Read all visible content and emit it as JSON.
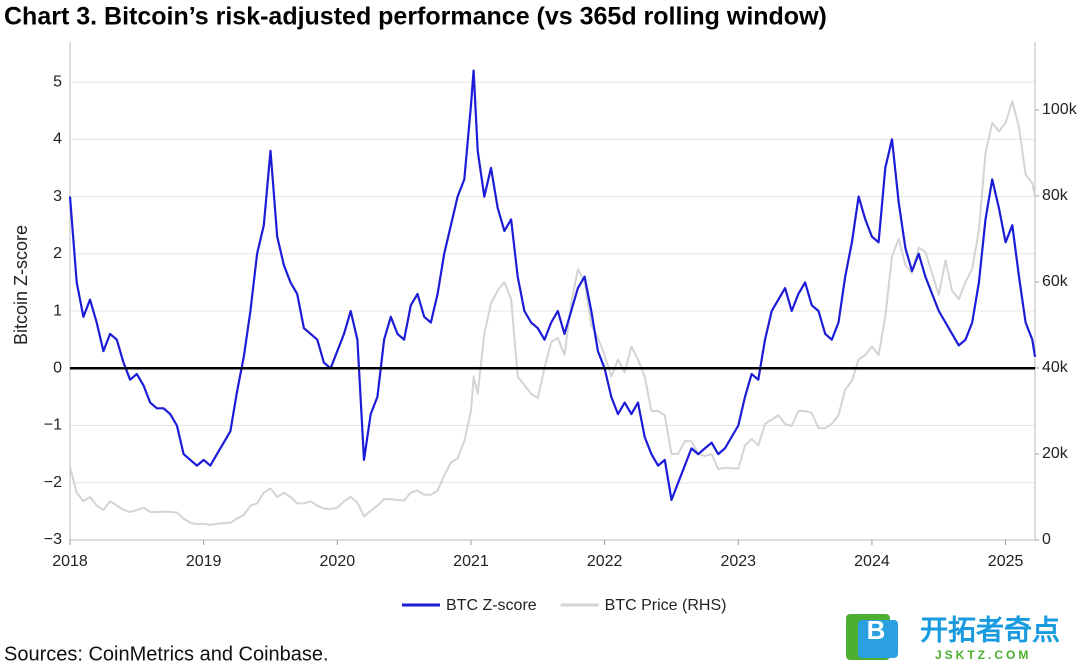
{
  "chart_data": {
    "type": "line",
    "title": "Chart 3. Bitcoin’s risk-adjusted performance (vs 365d rolling window)",
    "y_label": "Bitcoin Z-score",
    "source": "Sources: CoinMetrics and Coinbase.",
    "x": [
      2018,
      2018.05,
      2018.1,
      2018.15,
      2018.2,
      2018.25,
      2018.3,
      2018.35,
      2018.4,
      2018.45,
      2018.5,
      2018.55,
      2018.6,
      2018.65,
      2018.7,
      2018.75,
      2018.8,
      2018.85,
      2018.9,
      2018.95,
      2019,
      2019.05,
      2019.1,
      2019.15,
      2019.2,
      2019.25,
      2019.3,
      2019.35,
      2019.4,
      2019.45,
      2019.5,
      2019.55,
      2019.6,
      2019.65,
      2019.7,
      2019.75,
      2019.8,
      2019.85,
      2019.9,
      2019.95,
      2020,
      2020.05,
      2020.1,
      2020.15,
      2020.2,
      2020.25,
      2020.3,
      2020.35,
      2020.4,
      2020.45,
      2020.5,
      2020.55,
      2020.6,
      2020.65,
      2020.7,
      2020.75,
      2020.8,
      2020.85,
      2020.9,
      2020.95,
      2021,
      2021.02,
      2021.05,
      2021.1,
      2021.15,
      2021.2,
      2021.25,
      2021.3,
      2021.35,
      2021.4,
      2021.45,
      2021.5,
      2021.55,
      2021.6,
      2021.65,
      2021.7,
      2021.75,
      2021.8,
      2021.85,
      2021.9,
      2021.95,
      2022,
      2022.05,
      2022.1,
      2022.15,
      2022.2,
      2022.25,
      2022.3,
      2022.35,
      2022.4,
      2022.45,
      2022.5,
      2022.55,
      2022.6,
      2022.65,
      2022.7,
      2022.75,
      2022.8,
      2022.85,
      2022.9,
      2022.95,
      2023,
      2023.05,
      2023.1,
      2023.15,
      2023.2,
      2023.25,
      2023.3,
      2023.35,
      2023.4,
      2023.45,
      2023.5,
      2023.55,
      2023.6,
      2023.65,
      2023.7,
      2023.75,
      2023.8,
      2023.85,
      2023.9,
      2023.95,
      2024,
      2024.05,
      2024.1,
      2024.15,
      2024.2,
      2024.25,
      2024.3,
      2024.35,
      2024.4,
      2024.45,
      2024.5,
      2024.55,
      2024.6,
      2024.65,
      2024.7,
      2024.75,
      2024.8,
      2024.85,
      2024.9,
      2024.95,
      2025,
      2025.05,
      2025.1,
      2025.15,
      2025.2,
      2025.22
    ],
    "series": [
      {
        "name": "BTC Price (RHS)",
        "color": "#d4d4d4",
        "axis": "y2",
        "values": [
          17000,
          11000,
          9000,
          10000,
          8000,
          7000,
          9000,
          8000,
          7000,
          6500,
          7000,
          7500,
          6500,
          6500,
          6600,
          6500,
          6400,
          5000,
          4000,
          3700,
          3800,
          3500,
          3800,
          3900,
          4000,
          5000,
          5800,
          8000,
          8500,
          11000,
          12000,
          10000,
          11000,
          10000,
          8500,
          8500,
          9000,
          8000,
          7300,
          7200,
          7500,
          9000,
          10000,
          8700,
          5500,
          6800,
          8000,
          9500,
          9500,
          9300,
          9200,
          11000,
          11500,
          10500,
          10500,
          11500,
          15000,
          18000,
          19000,
          23000,
          30000,
          38000,
          34000,
          48000,
          55000,
          58000,
          60000,
          56000,
          38000,
          36000,
          34000,
          33000,
          40000,
          46000,
          47000,
          43000,
          55000,
          63000,
          60000,
          50000,
          47000,
          43000,
          38000,
          42000,
          39000,
          45000,
          42000,
          38000,
          30000,
          30000,
          29000,
          20000,
          20000,
          23000,
          23000,
          20000,
          19500,
          20000,
          16500,
          16800,
          16700,
          16600,
          22000,
          23500,
          22000,
          27000,
          28000,
          29000,
          27000,
          26500,
          30000,
          30000,
          29500,
          26000,
          26000,
          27000,
          29000,
          35000,
          37000,
          42000,
          43000,
          45000,
          43000,
          52000,
          66000,
          70000,
          64000,
          62000,
          68000,
          67000,
          62000,
          57000,
          65000,
          58000,
          56000,
          60000,
          63000,
          72000,
          90000,
          97000,
          95000,
          97000,
          102000,
          96000,
          85000,
          83000,
          80000
        ]
      },
      {
        "name": "BTC Z-score",
        "color": "#1c1cd8",
        "values": [
          3.0,
          1.5,
          0.9,
          1.2,
          0.8,
          0.3,
          0.6,
          0.5,
          0.1,
          -0.2,
          -0.1,
          -0.3,
          -0.6,
          -0.7,
          -0.7,
          -0.8,
          -1.0,
          -1.5,
          -1.6,
          -1.7,
          -1.6,
          -1.7,
          -1.5,
          -1.3,
          -1.1,
          -0.4,
          0.2,
          1.0,
          2.0,
          2.5,
          3.8,
          2.3,
          1.8,
          1.5,
          1.3,
          0.7,
          0.6,
          0.5,
          0.1,
          0.0,
          0.3,
          0.6,
          1.0,
          0.5,
          -1.6,
          -0.8,
          -0.5,
          0.5,
          0.9,
          0.6,
          0.5,
          1.1,
          1.3,
          0.9,
          0.8,
          1.3,
          2.0,
          2.5,
          3.0,
          3.3,
          4.6,
          5.2,
          3.8,
          3.0,
          3.5,
          2.8,
          2.4,
          2.6,
          1.6,
          1.0,
          0.8,
          0.7,
          0.5,
          0.8,
          1.0,
          0.6,
          1.0,
          1.4,
          1.6,
          1.0,
          0.3,
          0.0,
          -0.5,
          -0.8,
          -0.6,
          -0.8,
          -0.6,
          -1.2,
          -1.5,
          -1.7,
          -1.6,
          -2.3,
          -2.0,
          -1.7,
          -1.4,
          -1.5,
          -1.4,
          -1.3,
          -1.5,
          -1.4,
          -1.2,
          -1.0,
          -0.5,
          -0.1,
          -0.2,
          0.5,
          1.0,
          1.2,
          1.4,
          1.0,
          1.3,
          1.5,
          1.1,
          1.0,
          0.6,
          0.5,
          0.8,
          1.6,
          2.2,
          3.0,
          2.6,
          2.3,
          2.2,
          3.5,
          4.0,
          2.9,
          2.1,
          1.7,
          2.0,
          1.6,
          1.3,
          1.0,
          0.8,
          0.6,
          0.4,
          0.5,
          0.8,
          1.5,
          2.6,
          3.3,
          2.8,
          2.2,
          2.5,
          1.6,
          0.8,
          0.5,
          0.2
        ]
      }
    ],
    "legend_order": [
      1,
      0
    ],
    "xlim": [
      2018,
      2025.22
    ],
    "xticks": [
      2018,
      2019,
      2020,
      2021,
      2022,
      2023,
      2024,
      2025
    ],
    "ylim": [
      -3,
      5.7
    ],
    "yticks": [
      {
        "value": -3,
        "label": "−3"
      },
      {
        "value": -2,
        "label": "−2"
      },
      {
        "value": -1,
        "label": "−1"
      },
      0,
      1,
      2,
      3,
      4,
      5
    ],
    "y2lim": [
      0,
      115800
    ],
    "y2ticks": [
      0,
      {
        "value": 20000,
        "label": "20k"
      },
      {
        "value": 40000,
        "label": "40k"
      },
      {
        "value": 60000,
        "label": "60k"
      },
      {
        "value": 80000,
        "label": "80k"
      },
      {
        "value": 100000,
        "label": "100k"
      }
    ],
    "hlines": [
      0
    ],
    "grid": true
  },
  "watermark": {
    "text": "开拓者奇点",
    "url": "JSKTZ.COM",
    "logo": "B"
  }
}
